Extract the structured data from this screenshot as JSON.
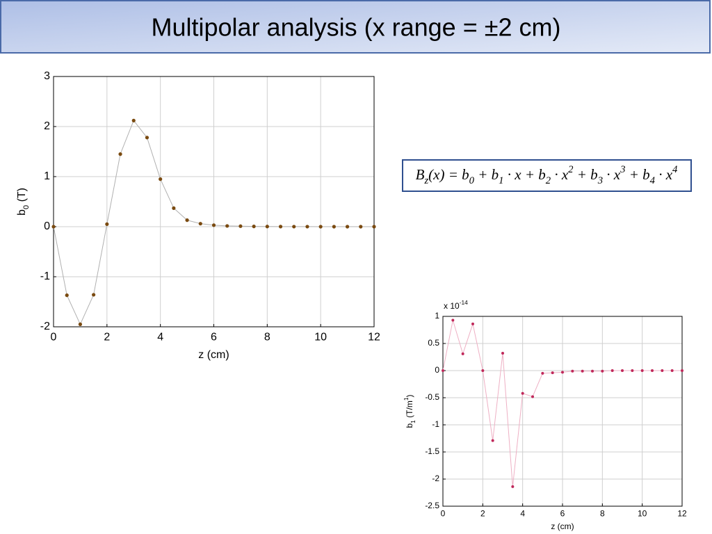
{
  "slide": {
    "title": "Multipolar analysis (x range = ±2 cm)",
    "equation": [
      {
        "text": "B",
        "sub": "z"
      },
      {
        "text": "(x) = b",
        "sub": "0"
      },
      {
        "text": " + b",
        "sub": "1"
      },
      {
        "text": " · x + b",
        "sub": "2"
      },
      {
        "text": " · x",
        "sup": "2"
      },
      {
        "text": " + b",
        "sub": "3"
      },
      {
        "text": " · x",
        "sup": "3"
      },
      {
        "text": " + b",
        "sub": "4"
      },
      {
        "text": " · x",
        "sup": "4"
      }
    ]
  },
  "chart_data": [
    {
      "type": "line",
      "markers": true,
      "grid": true,
      "x_label": [
        {
          "text": "z (cm)"
        }
      ],
      "y_label": [
        {
          "text": "b",
          "sub": "0"
        },
        {
          "text": " (T)"
        }
      ],
      "x": [
        0,
        0.5,
        1,
        1.5,
        2,
        2.5,
        3,
        3.5,
        4,
        4.5,
        5,
        5.5,
        6,
        6.5,
        7,
        7.5,
        8,
        8.5,
        9,
        9.5,
        10,
        10.5,
        11,
        11.5,
        12
      ],
      "series": [
        {
          "color": "#7a4a10",
          "line_color": "#b0b0b0",
          "values": [
            0,
            -1.37,
            -1.95,
            -1.36,
            0.05,
            1.45,
            2.12,
            1.78,
            0.95,
            0.37,
            0.13,
            0.06,
            0.03,
            0.015,
            0.01,
            0.005,
            0.003,
            0.002,
            0.001,
            0.001,
            0,
            0,
            0,
            0,
            0
          ]
        }
      ],
      "xlim": [
        0,
        12
      ],
      "xticks": [
        0,
        2,
        4,
        6,
        8,
        10,
        12
      ],
      "ylim": [
        -2,
        3
      ],
      "yticks": [
        -2,
        -1,
        0,
        1,
        2,
        3
      ]
    },
    {
      "type": "line",
      "markers": true,
      "grid": true,
      "x_label": [
        {
          "text": "z (cm)"
        }
      ],
      "y_label": [
        {
          "text": "b",
          "sub": "1"
        },
        {
          "text": " (T/m",
          "sup": "1"
        },
        {
          "text": ")"
        }
      ],
      "y_multiplier": [
        {
          "text": "x 10",
          "sup": "-14"
        }
      ],
      "x": [
        0,
        0.5,
        1,
        1.5,
        2,
        2.5,
        3,
        3.5,
        4,
        4.5,
        5,
        5.5,
        6,
        6.5,
        7,
        7.5,
        8,
        8.5,
        9,
        9.5,
        10,
        10.5,
        11,
        11.5,
        12
      ],
      "series": [
        {
          "color": "#c0285a",
          "line_color": "#eeb0c4",
          "values": [
            0,
            0.93,
            0.31,
            0.86,
            0,
            -1.29,
            0.32,
            -2.14,
            -0.42,
            -0.48,
            -0.05,
            -0.04,
            -0.03,
            -0.01,
            -0.01,
            -0.01,
            -0.01,
            0,
            0,
            0,
            0,
            0,
            0,
            0,
            0
          ]
        }
      ],
      "xlim": [
        0,
        12
      ],
      "xticks": [
        0,
        2,
        4,
        6,
        8,
        10,
        12
      ],
      "ylim": [
        -2.5,
        1
      ],
      "yticks": [
        -2.5,
        -2,
        -1.5,
        -1,
        -0.5,
        0,
        0.5,
        1
      ]
    }
  ]
}
